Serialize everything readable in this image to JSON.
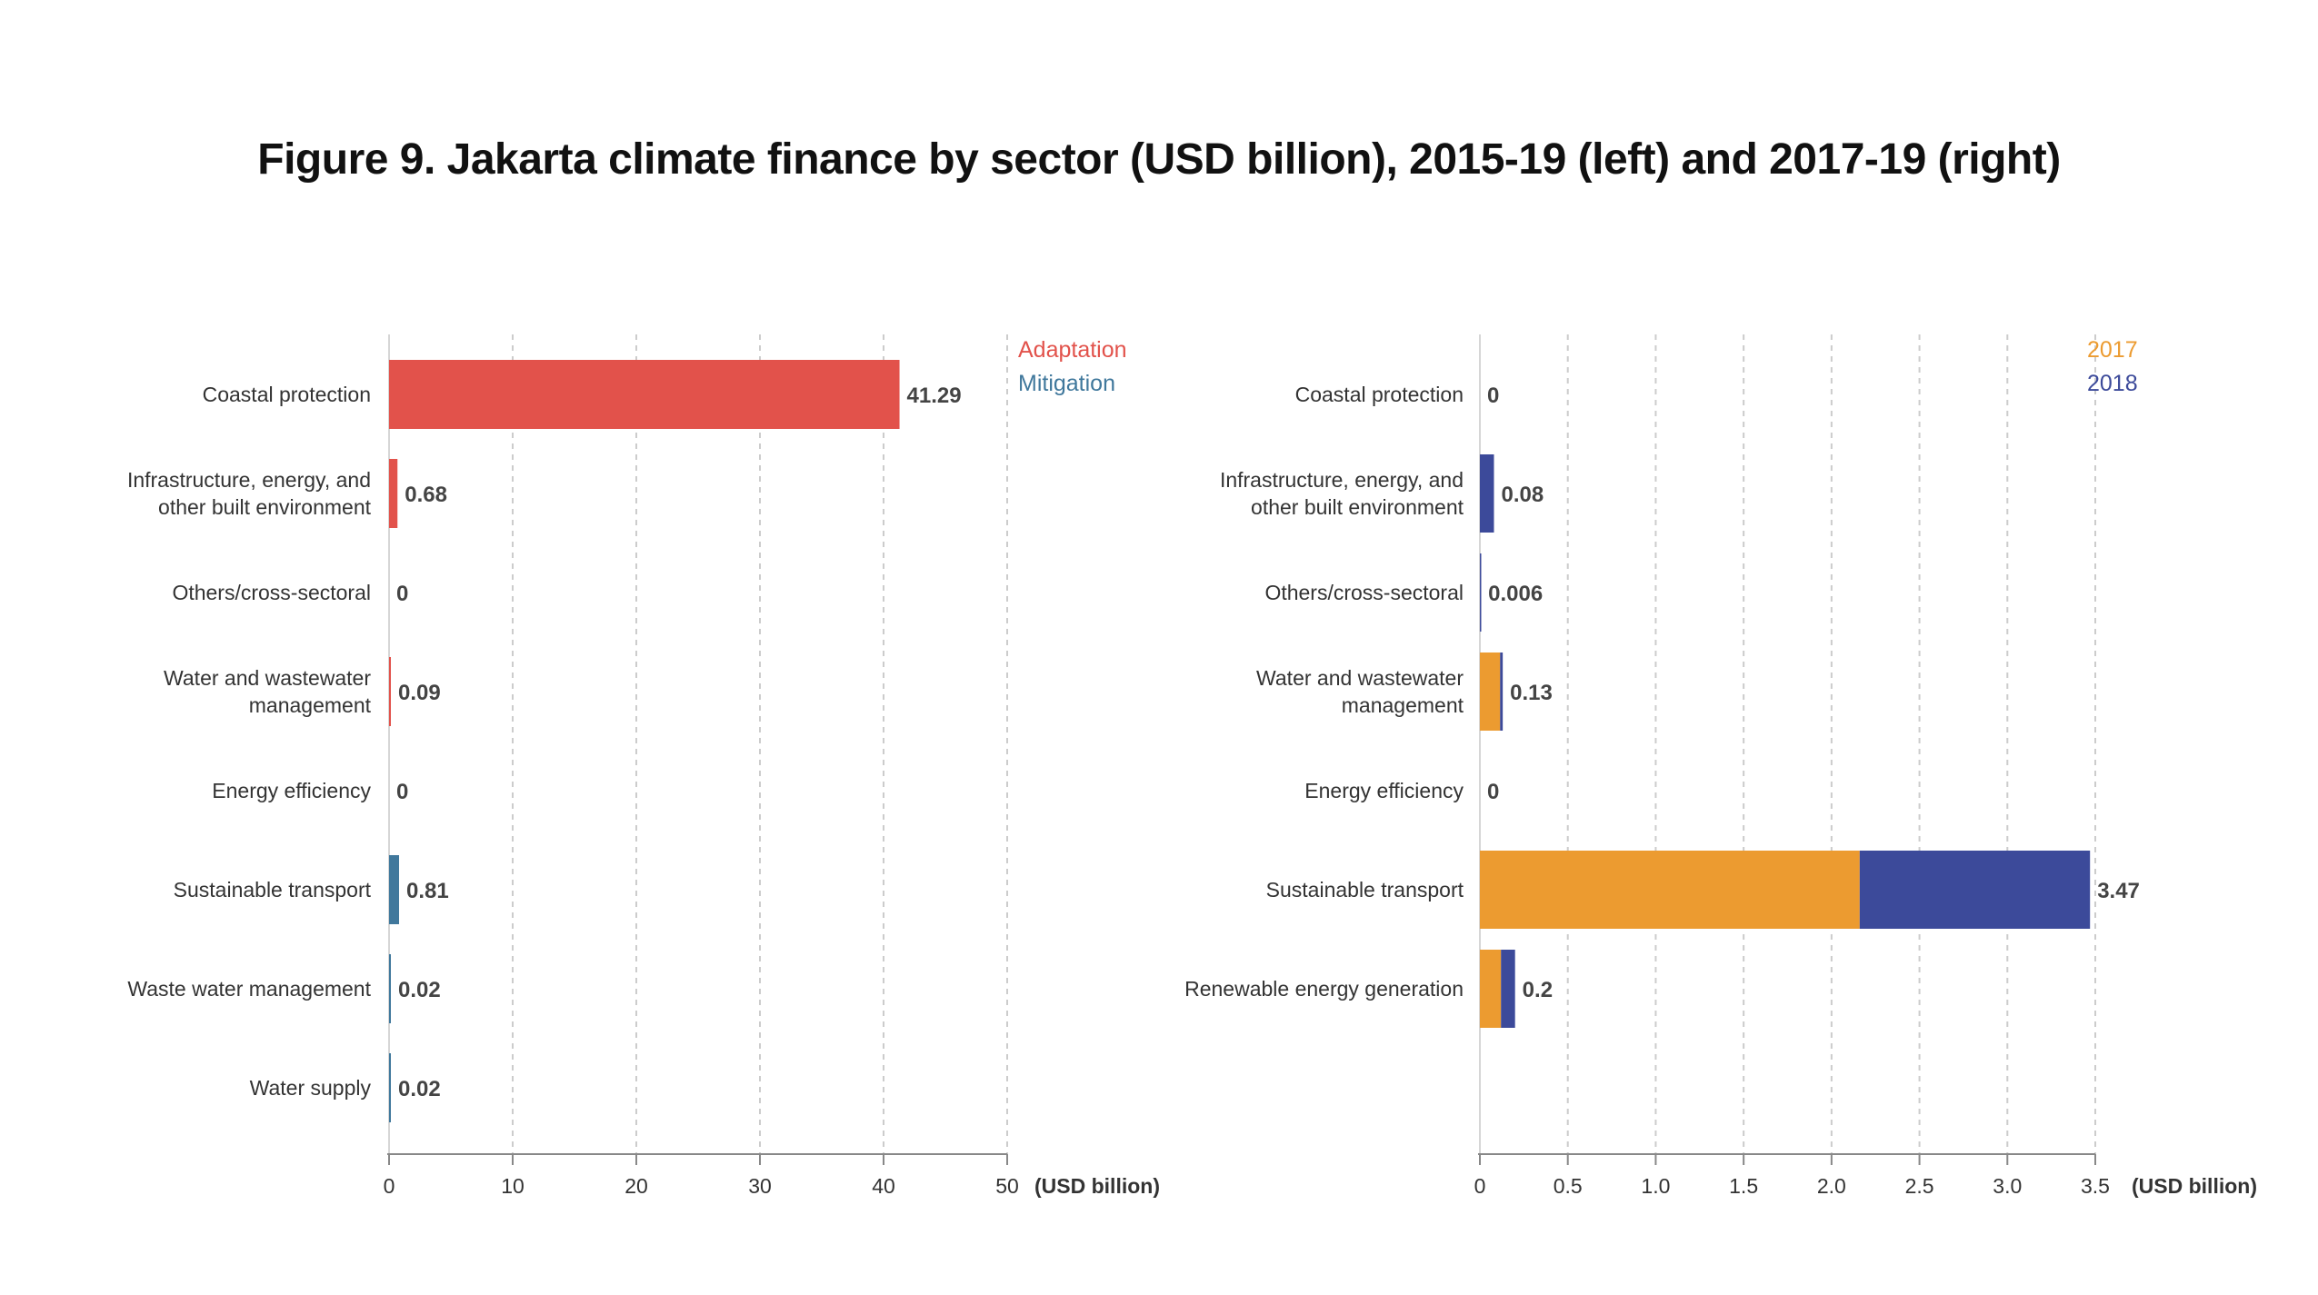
{
  "title": "Figure 9. Jakarta climate finance by sector (USD billion), 2015-19 (left) and 2017-19 (right)",
  "colors": {
    "adaptation": "#e2524b",
    "mitigation": "#40789c",
    "y2017": "#ec9b30",
    "y2018": "#3c4a9a",
    "grid": "#cccccc",
    "axis": "#888888",
    "text": "#333333"
  },
  "chart_data": [
    {
      "type": "bar",
      "orientation": "horizontal",
      "categories": [
        "Coastal protection",
        "Infrastructure, energy, and other built environment",
        "Others/cross-sectoral",
        "Water and wastewater management",
        "Energy efficiency",
        "Sustainable transport",
        "Waste water management",
        "Water supply"
      ],
      "values": [
        41.29,
        0.68,
        0,
        0.09,
        0,
        0.81,
        0.02,
        0.02
      ],
      "value_labels": [
        "41.29",
        "0.68",
        "0",
        "0.09",
        "0",
        "0.81",
        "0.02",
        "0.02"
      ],
      "groups": [
        "adaptation",
        "adaptation",
        "adaptation",
        "adaptation",
        "mitigation",
        "mitigation",
        "mitigation",
        "mitigation"
      ],
      "legend": [
        {
          "name": "Adaptation",
          "color": "#e2524b"
        },
        {
          "name": "Mitigation",
          "color": "#40789c"
        }
      ],
      "legend_position": "top-right",
      "xlim": [
        0,
        50
      ],
      "xticks": [
        0,
        10,
        20,
        30,
        40,
        50
      ],
      "xtick_labels": [
        "0",
        "10",
        "20",
        "30",
        "40",
        "50"
      ],
      "xlabel": "(USD billion)",
      "grid": "vertical dashed"
    },
    {
      "type": "bar",
      "orientation": "horizontal",
      "stacked": true,
      "categories": [
        "Coastal protection",
        "Infrastructure, energy, and other built environment",
        "Others/cross-sectoral",
        "Water and wastewater management",
        "Energy efficiency",
        "Sustainable transport",
        "Renewable energy generation"
      ],
      "series": [
        {
          "name": "2017",
          "color": "#ec9b30",
          "values": [
            0,
            0,
            0,
            0.115,
            0,
            2.16,
            0.12
          ]
        },
        {
          "name": "2018",
          "color": "#3c4a9a",
          "values": [
            0,
            0.08,
            0.006,
            0.015,
            0,
            1.31,
            0.08
          ]
        }
      ],
      "totals": [
        0,
        0.08,
        0.006,
        0.13,
        0,
        3.47,
        0.2
      ],
      "total_labels": [
        "0",
        "0.08",
        "0.006",
        "0.13",
        "0",
        "3.47",
        "0.2"
      ],
      "legend_position": "top-right",
      "xlim": [
        0,
        3.5
      ],
      "xticks": [
        0,
        0.5,
        1.0,
        1.5,
        2.0,
        2.5,
        3.0,
        3.5
      ],
      "xtick_labels": [
        "0",
        "0.5",
        "1.0",
        "1.5",
        "2.0",
        "2.5",
        "3.0",
        "3.5"
      ],
      "xlabel": "(USD billion)",
      "grid": "vertical dashed"
    }
  ]
}
